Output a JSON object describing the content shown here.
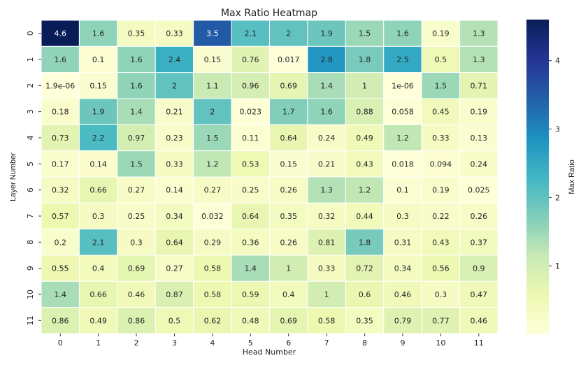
{
  "chart_data": {
    "type": "heatmap",
    "title": "Max Ratio Heatmap",
    "xlabel": "Head Number",
    "ylabel": "Layer Number",
    "colorbar_label": "Max Ratio",
    "colormap": "YlGnBu",
    "colorbar_range": [
      0,
      4.6
    ],
    "colorbar_ticks": [
      "1",
      "2",
      "3",
      "4"
    ],
    "colormap_stops": [
      "#ffffd9",
      "#edf8b1",
      "#c7e9b4",
      "#7fcdbb",
      "#41b6c4",
      "#1d91c0",
      "#225ea8",
      "#253494",
      "#081d58"
    ],
    "x_categories": [
      "0",
      "1",
      "2",
      "3",
      "4",
      "5",
      "6",
      "7",
      "8",
      "9",
      "10",
      "11"
    ],
    "y_categories": [
      "0",
      "1",
      "2",
      "3",
      "4",
      "5",
      "6",
      "7",
      "8",
      "9",
      "10",
      "11"
    ],
    "values": [
      [
        "4.6",
        "1.6",
        "0.35",
        "0.33",
        "3.5",
        "2.1",
        "2",
        "1.9",
        "1.5",
        "1.6",
        "0.19",
        "1.3"
      ],
      [
        "1.6",
        "0.1",
        "1.6",
        "2.4",
        "0.15",
        "0.76",
        "0.017",
        "2.8",
        "1.8",
        "2.5",
        "0.5",
        "1.3"
      ],
      [
        "1.9e-06",
        "0.15",
        "1.6",
        "2",
        "1.1",
        "0.96",
        "0.69",
        "1.4",
        "1",
        "1e-06",
        "1.5",
        "0.71"
      ],
      [
        "0.18",
        "1.9",
        "1.4",
        "0.21",
        "2",
        "0.023",
        "1.7",
        "1.6",
        "0.88",
        "0.058",
        "0.45",
        "0.19"
      ],
      [
        "0.73",
        "2.2",
        "0.97",
        "0.23",
        "1.5",
        "0.11",
        "0.64",
        "0.24",
        "0.49",
        "1.2",
        "0.33",
        "0.13"
      ],
      [
        "0.17",
        "0.14",
        "1.5",
        "0.33",
        "1.2",
        "0.53",
        "0.15",
        "0.21",
        "0.43",
        "0.018",
        "0.094",
        "0.24"
      ],
      [
        "0.32",
        "0.66",
        "0.27",
        "0.14",
        "0.27",
        "0.25",
        "0.26",
        "1.3",
        "1.2",
        "0.1",
        "0.19",
        "0.025"
      ],
      [
        "0.57",
        "0.3",
        "0.25",
        "0.34",
        "0.032",
        "0.64",
        "0.35",
        "0.32",
        "0.44",
        "0.3",
        "0.22",
        "0.26"
      ],
      [
        "0.2",
        "2.1",
        "0.3",
        "0.64",
        "0.29",
        "0.36",
        "0.26",
        "0.81",
        "1.8",
        "0.31",
        "0.43",
        "0.37"
      ],
      [
        "0.55",
        "0.4",
        "0.69",
        "0.27",
        "0.58",
        "1.4",
        "1",
        "0.33",
        "0.72",
        "0.34",
        "0.56",
        "0.9"
      ],
      [
        "1.4",
        "0.66",
        "0.46",
        "0.87",
        "0.58",
        "0.59",
        "0.4",
        "1",
        "0.6",
        "0.46",
        "0.3",
        "0.47"
      ],
      [
        "0.86",
        "0.49",
        "0.86",
        "0.5",
        "0.62",
        "0.48",
        "0.69",
        "0.58",
        "0.35",
        "0.79",
        "0.77",
        "0.46"
      ]
    ]
  }
}
